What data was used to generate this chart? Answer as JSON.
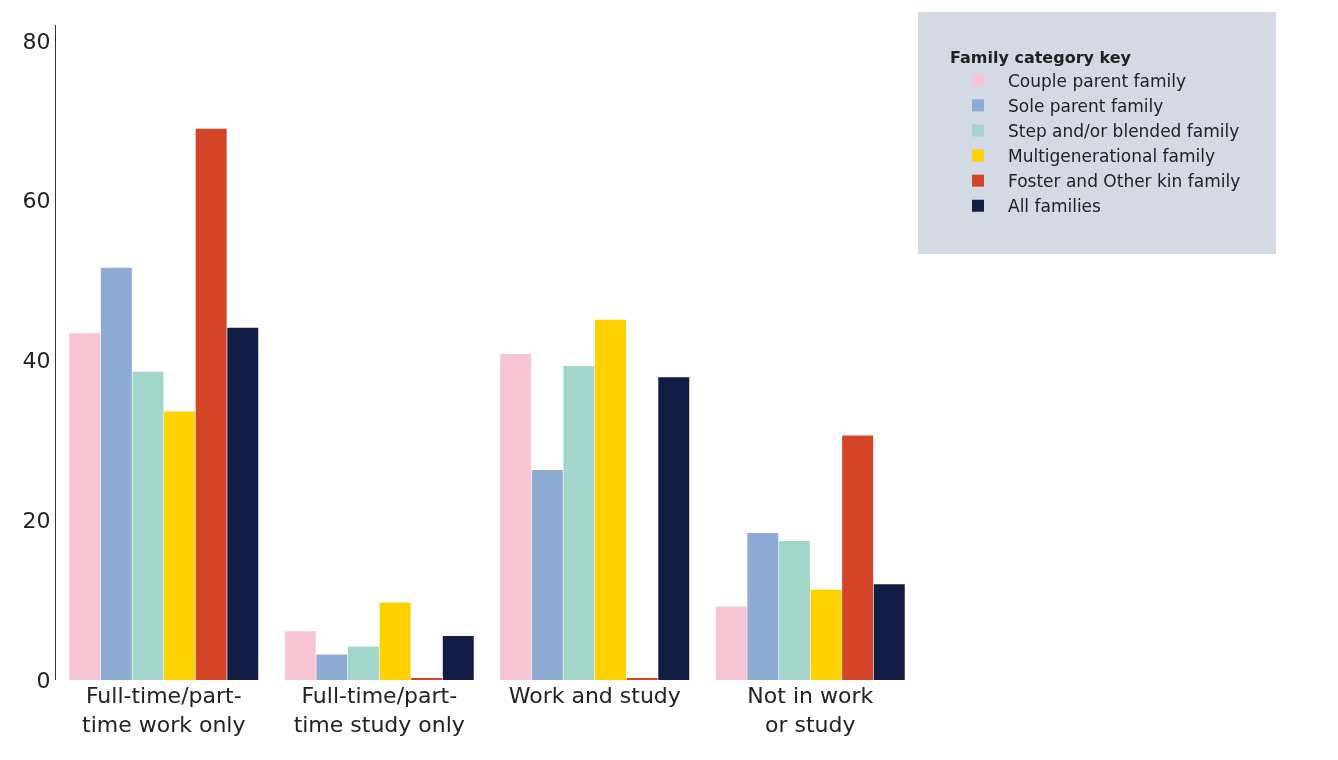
{
  "chart_data": {
    "type": "bar",
    "legend_title": "Family category key",
    "categories": [
      "Full-time/part-time work only",
      "Full-time/part-time study only",
      "Work and study",
      "Not in work or study"
    ],
    "series": [
      {
        "name": "Couple parent family",
        "color": "#f8c5d4",
        "values": [
          43.4,
          6.1,
          40.8,
          9.2
        ]
      },
      {
        "name": "Sole parent family",
        "color": "#8eabd4",
        "values": [
          51.6,
          3.2,
          26.3,
          18.4
        ]
      },
      {
        "name": "Step and/or blended family",
        "color": "#a3d6cb",
        "values": [
          38.6,
          4.2,
          39.3,
          17.4
        ]
      },
      {
        "name": "Multigenerational family",
        "color": "#fed100",
        "values": [
          33.6,
          9.7,
          45.1,
          11.3
        ]
      },
      {
        "name": "Foster and Other kin family",
        "color": "#d44527",
        "values": [
          69.0,
          0.2,
          0.2,
          30.6
        ]
      },
      {
        "name": "All families",
        "color": "#121d45",
        "values": [
          44.1,
          5.5,
          37.9,
          12.0
        ]
      }
    ],
    "ylim": [
      0,
      82
    ],
    "yticks": [
      0,
      20,
      40,
      60,
      80
    ],
    "grid": false,
    "legend": "top right"
  }
}
